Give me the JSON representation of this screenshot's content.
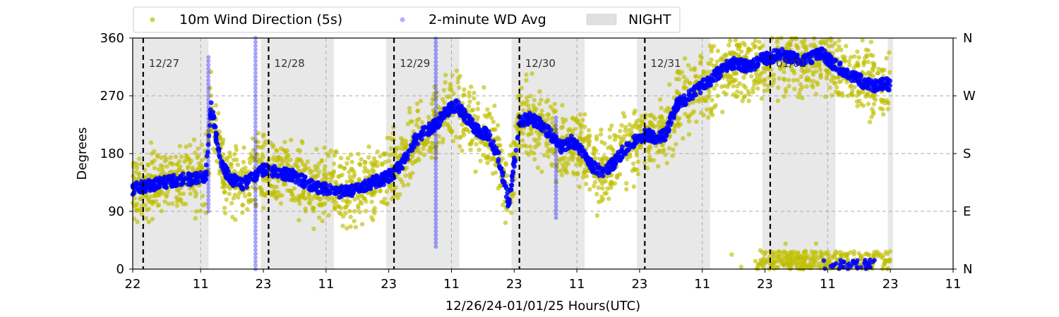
{
  "chart_data": {
    "type": "scatter",
    "title": "",
    "xlabel": "12/26/24-01/01/25  Hours(UTC)",
    "ylabel": "Degrees",
    "ylim": [
      0,
      360
    ],
    "yticks": [
      0,
      90,
      180,
      270,
      360
    ],
    "right_axis_labels": [
      "N",
      "E",
      "S",
      "W",
      "N"
    ],
    "x_range_hours_utc": [
      "12/26 22:00",
      "01/02 11:00"
    ],
    "xtick_labels": [
      "22",
      "11",
      "23",
      "11",
      "23",
      "11",
      "23",
      "11",
      "23",
      "11",
      "23",
      "11",
      "23",
      "11"
    ],
    "grid": "dashed horizontal at 90/180/270, dashed vertical at each 11:00",
    "legend": {
      "placement": "top-left, above plot",
      "entries": [
        "10m Wind Direction (5s)",
        "2-minute WD Avg",
        "NIGHT"
      ]
    },
    "day_markers": [
      "12/27",
      "12/28",
      "12/29",
      "12/30",
      "12/31",
      "01/01"
    ],
    "night_shading_hours_utc": [
      [
        "12/26 22:00",
        "12/27 12:30"
      ],
      [
        "12/27 22:30",
        "12/28 12:30"
      ],
      [
        "12/28 22:30",
        "12/29 12:30"
      ],
      [
        "12/29 22:30",
        "12/30 12:30"
      ],
      [
        "12/30 22:30",
        "12/31 12:30"
      ],
      [
        "12/31 22:30",
        "01/01 12:30"
      ],
      [
        "01/01 22:30",
        "01/01 23:30"
      ]
    ],
    "series": [
      {
        "name": "2-minute WD Avg",
        "color": "#0000ff",
        "hours_since_12_26_22UTC": [
          0,
          3,
          6,
          9,
          12,
          14,
          15,
          17,
          19,
          21,
          23,
          25,
          28,
          31,
          34,
          37,
          40,
          43,
          46,
          48,
          50,
          52,
          54,
          56,
          58,
          60,
          62,
          64,
          66,
          68,
          70,
          72,
          74,
          76,
          78,
          80,
          82,
          84,
          86,
          88,
          90,
          92,
          94,
          96,
          98,
          100,
          102,
          104,
          106,
          108,
          110,
          112,
          114,
          116,
          118,
          120,
          122,
          124,
          126,
          128,
          130,
          132,
          134,
          136,
          138,
          140,
          142,
          144,
          145
        ],
        "values": [
          125,
          130,
          135,
          140,
          140,
          145,
          255,
          160,
          140,
          130,
          145,
          155,
          150,
          145,
          130,
          125,
          120,
          125,
          135,
          140,
          150,
          170,
          200,
          215,
          225,
          245,
          255,
          235,
          215,
          210,
          175,
          100,
          230,
          235,
          225,
          210,
          190,
          200,
          185,
          160,
          150,
          165,
          185,
          200,
          210,
          205,
          210,
          255,
          265,
          280,
          290,
          305,
          320,
          320,
          315,
          325,
          330,
          335,
          330,
          325,
          330,
          335,
          320,
          310,
          300,
          290,
          285,
          290,
          285
        ]
      }
    ]
  }
}
